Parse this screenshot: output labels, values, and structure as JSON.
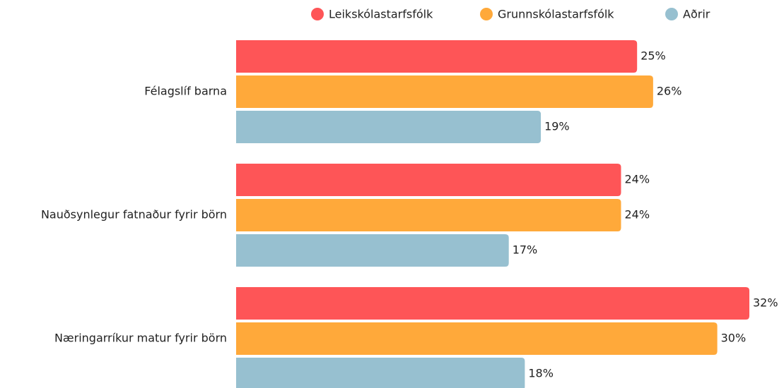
{
  "chart_data": {
    "type": "barh",
    "categories": [
      "Félagslíf barna",
      "Nauðsynlegur fatnaður fyrir börn",
      "Næringarríkur matur fyrir börn"
    ],
    "series": [
      {
        "name": "Leikskólastarfsfólk",
        "color": "#fe5557",
        "values": [
          25,
          24,
          32
        ],
        "value_labels": [
          "25%",
          "24%",
          "32%"
        ]
      },
      {
        "name": "Grunnskólastarfsfólk",
        "color": "#ffa93a",
        "values": [
          26,
          24,
          30
        ],
        "value_labels": [
          "26%",
          "24%",
          "30%"
        ]
      },
      {
        "name": "Aðrir",
        "color": "#97c0d0",
        "values": [
          19,
          17,
          18
        ],
        "value_labels": [
          "19%",
          "17%",
          "18%"
        ]
      }
    ],
    "legend": "top"
  }
}
